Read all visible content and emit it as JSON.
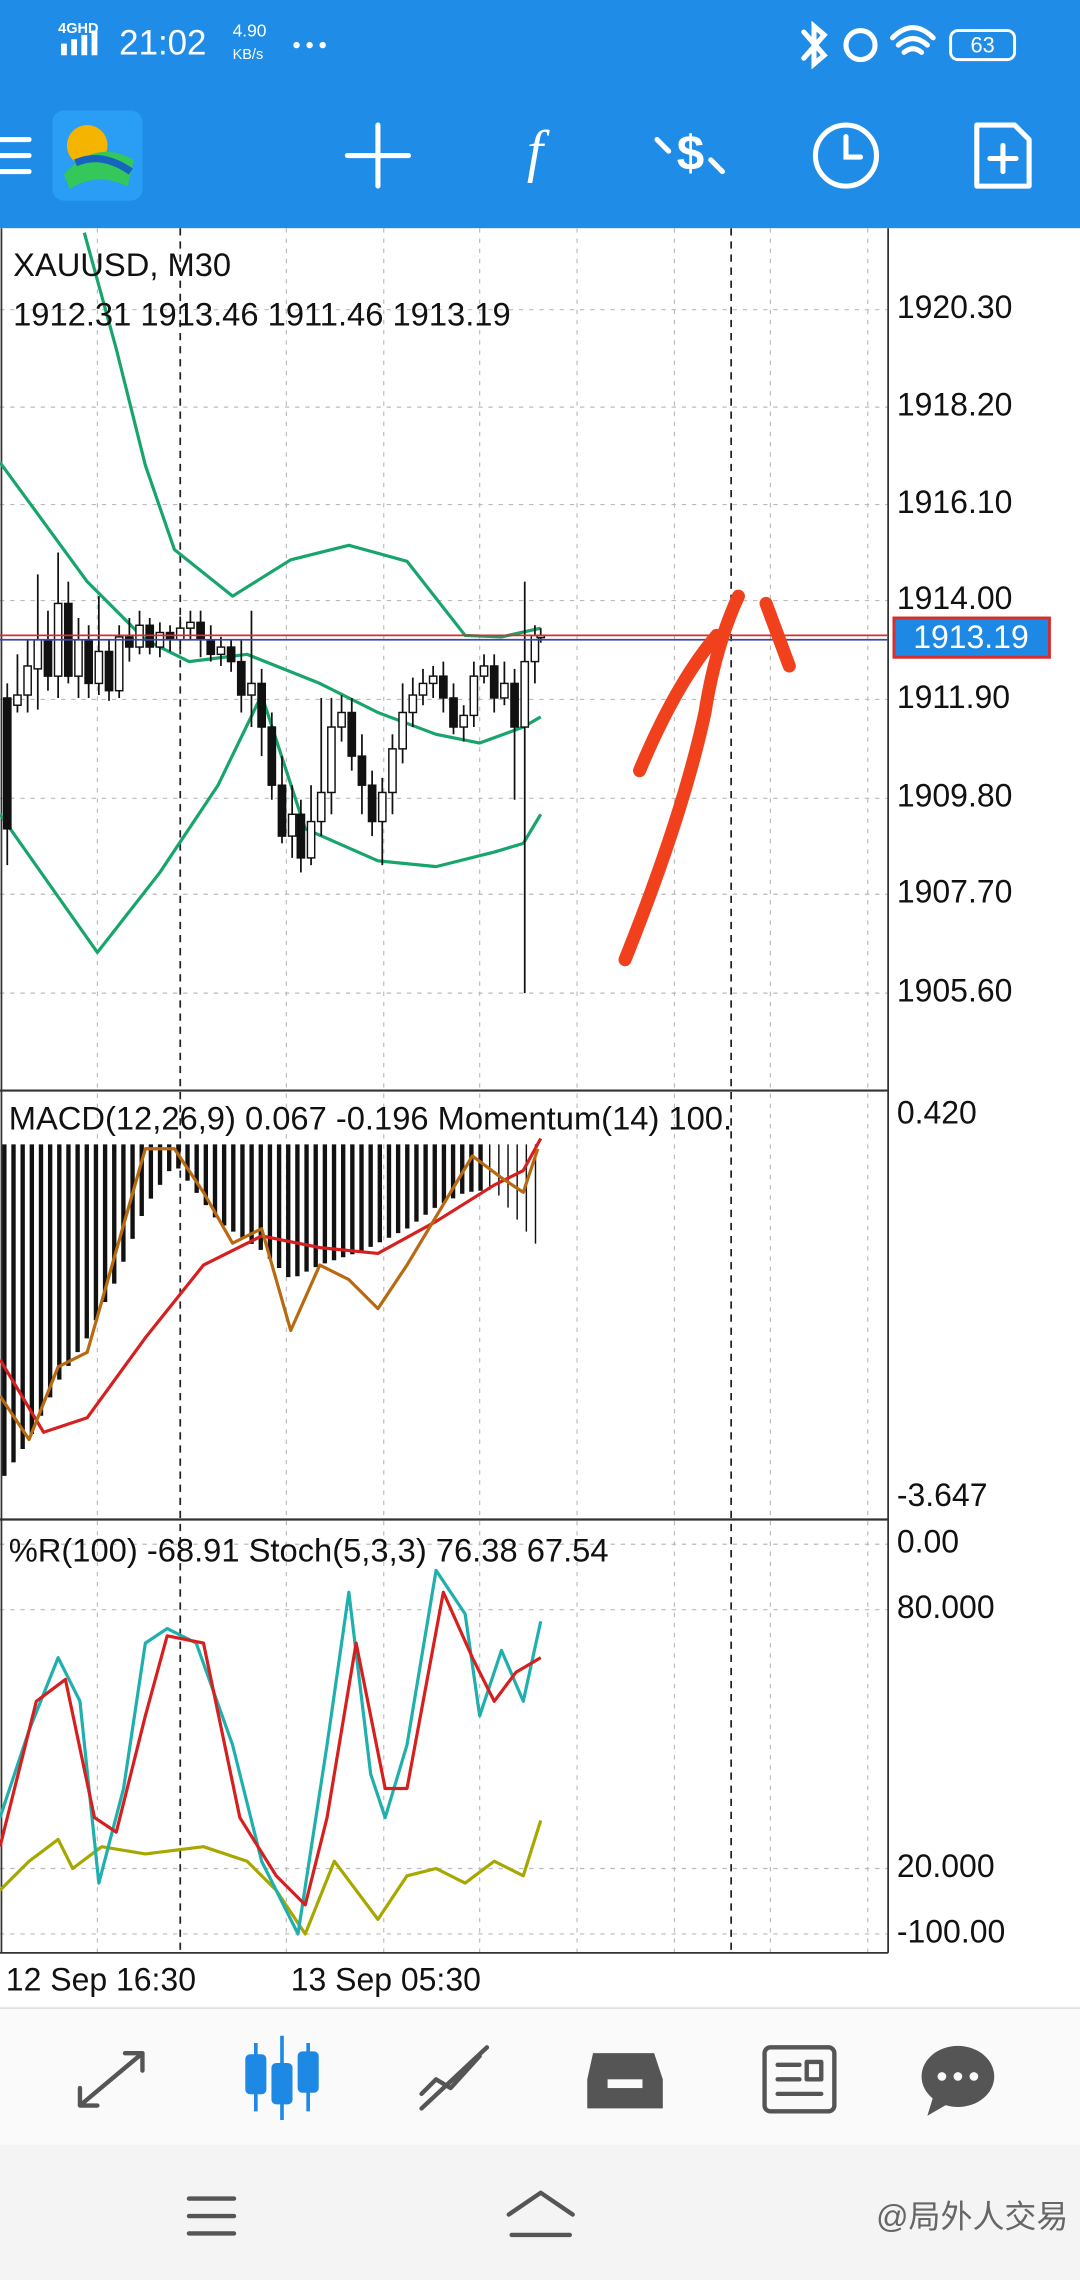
{
  "status_bar": {
    "signal": "4GHD",
    "time": "21:02",
    "speed": "4.90",
    "speed_unit": "KB/s",
    "battery": "63"
  },
  "chart": {
    "symbol": "XAUUSD, M30",
    "ohlc": "1912.31 1913.46 1911.46 1913.19",
    "price_labels": [
      "1920.30",
      "1918.20",
      "1916.10",
      "1914.00",
      "1911.90",
      "1909.80",
      "1907.70",
      "1905.60"
    ],
    "current_price": "1913.19"
  },
  "macd_panel": {
    "label": "MACD(12,26,9) 0.067 -0.196 Momentum(14) 100.",
    "axis_labels": [
      "0.420",
      "-3.647"
    ]
  },
  "stoch_panel": {
    "label": "%R(100) -68.91 Stoch(5,3,3) 76.38 67.54",
    "axis_labels": [
      "0.00",
      "80.000",
      "20.000",
      "-100.00"
    ]
  },
  "time_axis": [
    "12 Sep 16:30",
    "13 Sep 05:30"
  ],
  "watermark": "@局外人交易"
}
